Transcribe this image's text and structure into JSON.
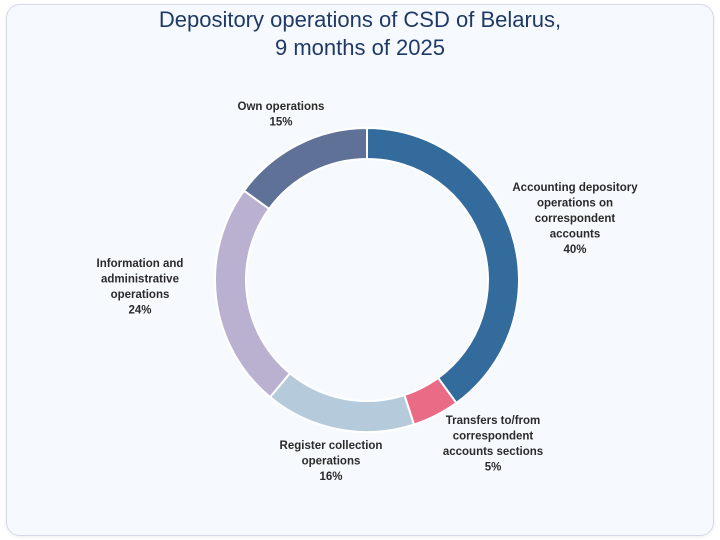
{
  "chart_data": {
    "type": "pie",
    "donut": true,
    "title_lines": [
      "Depository operations of CSD of Belarus,",
      "9 months of 2025"
    ],
    "slices": [
      {
        "label_lines": [
          "Accounting depository",
          "operations on",
          "correspondent",
          "accounts"
        ],
        "value": 40,
        "value_label": "40%",
        "color": "#336b9c"
      },
      {
        "label_lines": [
          "Transfers to/from",
          "correspondent",
          "accounts sections"
        ],
        "value": 5,
        "value_label": "5%",
        "color": "#ea6b86"
      },
      {
        "label_lines": [
          "Register collection",
          "operations"
        ],
        "value": 16,
        "value_label": "16%",
        "color": "#b5cbdc"
      },
      {
        "label_lines": [
          "Information and",
          "administrative",
          "operations"
        ],
        "value": 24,
        "value_label": "24%",
        "color": "#b9b1cf"
      },
      {
        "label_lines": [
          "Own operations"
        ],
        "value": 15,
        "value_label": "15%",
        "color": "#5f7196"
      }
    ]
  }
}
